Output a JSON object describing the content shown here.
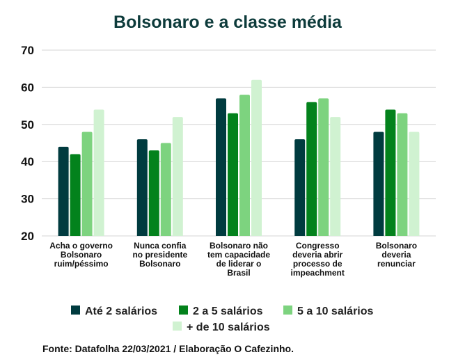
{
  "chart_data": {
    "type": "bar",
    "title": "Bolsonaro e a classe média",
    "categories": [
      [
        "Acha o governo",
        "Bolsonaro",
        "ruim/péssimo"
      ],
      [
        "Nunca confia",
        "no presidente",
        "Bolsonaro"
      ],
      [
        "Bolsonaro não",
        "tem capacidade",
        "de liderar o",
        "Brasil"
      ],
      [
        "Congresso",
        "deveria abrir",
        "processo de",
        "impeachment"
      ],
      [
        "Bolsonaro",
        "deveria",
        "renunciar"
      ]
    ],
    "series": [
      {
        "name": "Até 2 salários",
        "color": "#003b3f",
        "values": [
          44,
          46,
          57,
          46,
          48
        ]
      },
      {
        "name": "2 a 5 salários",
        "color": "#03821c",
        "values": [
          42,
          43,
          53,
          56,
          54
        ]
      },
      {
        "name": "5 a 10 salários",
        "color": "#7dd37f",
        "values": [
          48,
          45,
          58,
          57,
          53
        ]
      },
      {
        "name": "+ de 10 salários",
        "color": "#d0f2d1",
        "values": [
          54,
          52,
          62,
          52,
          48
        ]
      }
    ],
    "ylim": [
      20,
      70
    ],
    "yticks": [
      20,
      30,
      40,
      50,
      60,
      70
    ],
    "grid": true,
    "legend": "bottom"
  },
  "source": "Fonte: Datafolha 22/03/2021 / Elaboração O Cafezinho."
}
